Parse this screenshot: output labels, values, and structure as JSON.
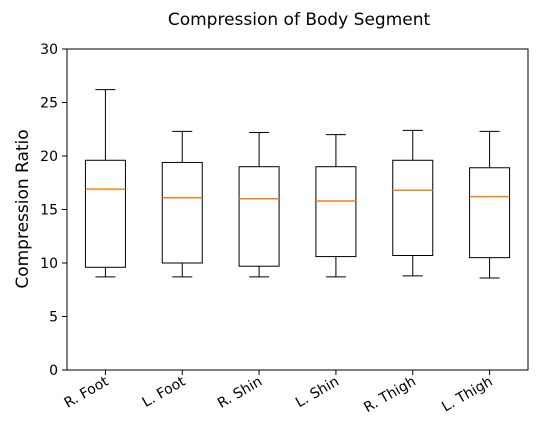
{
  "chart_data": {
    "type": "box",
    "title": "Compression of Body Segment",
    "xlabel": "",
    "ylabel": "Compression Ratio",
    "ylim": [
      0,
      30
    ],
    "yticks": [
      0,
      5,
      10,
      15,
      20,
      25,
      30
    ],
    "categories": [
      "R. Foot",
      "L. Foot",
      "R. Shin",
      "L. Shin",
      "R. Thigh",
      "L. Thigh"
    ],
    "boxes": [
      {
        "whisker_low": 8.7,
        "q1": 9.6,
        "median": 16.9,
        "q3": 19.6,
        "whisker_high": 26.2
      },
      {
        "whisker_low": 8.7,
        "q1": 10.0,
        "median": 16.1,
        "q3": 19.4,
        "whisker_high": 22.3
      },
      {
        "whisker_low": 8.7,
        "q1": 9.7,
        "median": 16.0,
        "q3": 19.0,
        "whisker_high": 22.2
      },
      {
        "whisker_low": 8.7,
        "q1": 10.6,
        "median": 15.8,
        "q3": 19.0,
        "whisker_high": 22.0
      },
      {
        "whisker_low": 8.8,
        "q1": 10.7,
        "median": 16.8,
        "q3": 19.6,
        "whisker_high": 22.4
      },
      {
        "whisker_low": 8.6,
        "q1": 10.5,
        "median": 16.2,
        "q3": 18.9,
        "whisker_high": 22.3
      }
    ],
    "grid": false,
    "colors": {
      "box": "#000000",
      "median": "#ff7f0e"
    }
  }
}
